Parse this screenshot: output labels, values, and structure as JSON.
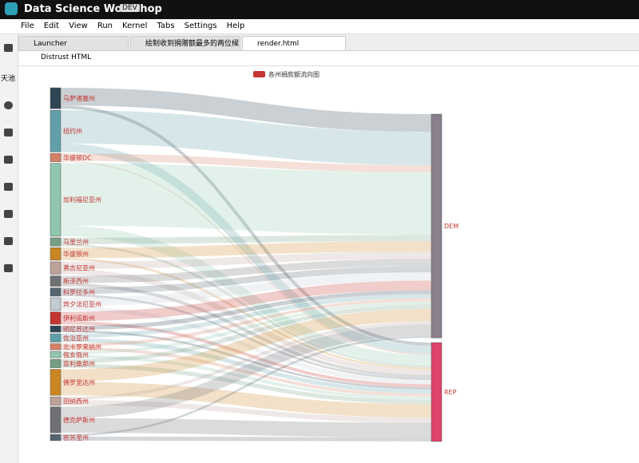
{
  "header": {
    "app_title": "Data Science Workshop",
    "badge": "DEV"
  },
  "menu": [
    "File",
    "Edit",
    "View",
    "Run",
    "Kernel",
    "Tabs",
    "Settings",
    "Help"
  ],
  "sidebar_label": "天池",
  "tabs": [
    "Launcher",
    "绘制收到捐赠额最多的两位候",
    "render.html"
  ],
  "toolbar": {
    "button": "Distrust HTML"
  },
  "chart_data": {
    "type": "sankey",
    "legend": "各州捐款额流向图",
    "legend_color": "#c23531",
    "colors": [
      "#2f4554",
      "#61a0a8",
      "#d48265",
      "#91c7ae",
      "#749f83",
      "#ca8622",
      "#bda29a",
      "#6e7074",
      "#546570",
      "#c4ccd3",
      "#c23531"
    ],
    "nodes": [
      "马萨诸塞州",
      "纽约州",
      "华盛顿DC",
      "加利福尼亚州",
      "马里兰州",
      "华盛顿州",
      "弗吉尼亚州",
      "新泽西州",
      "科罗拉多州",
      "宾夕法尼亚州",
      "伊利诺斯州",
      "明尼苏达州",
      "佐治亚州",
      "北卡罗来纳州",
      "俄亥俄州",
      "亚利桑那州",
      "佛罗里达州",
      "田纳西州",
      "德克萨斯州",
      "密苏里州",
      "DEM",
      "REP"
    ],
    "links": [
      {
        "source": "马萨诸塞州",
        "target": "DEM",
        "value": 17
      },
      {
        "source": "马萨诸塞州",
        "target": "REP",
        "value": 3
      },
      {
        "source": "纽约州",
        "target": "DEM",
        "value": 32
      },
      {
        "source": "纽约州",
        "target": "REP",
        "value": 8
      },
      {
        "source": "华盛顿DC",
        "target": "DEM",
        "value": 7
      },
      {
        "source": "华盛顿DC",
        "target": "REP",
        "value": 1
      },
      {
        "source": "加利福尼亚州",
        "target": "DEM",
        "value": 60
      },
      {
        "source": "加利福尼亚州",
        "target": "REP",
        "value": 10
      },
      {
        "source": "马里兰州",
        "target": "DEM",
        "value": 6
      },
      {
        "source": "马里兰州",
        "target": "REP",
        "value": 2
      },
      {
        "source": "华盛顿州",
        "target": "DEM",
        "value": 10
      },
      {
        "source": "华盛顿州",
        "target": "REP",
        "value": 2
      },
      {
        "source": "弗吉尼亚州",
        "target": "DEM",
        "value": 7
      },
      {
        "source": "弗吉尼亚州",
        "target": "REP",
        "value": 5
      },
      {
        "source": "新泽西州",
        "target": "DEM",
        "value": 7
      },
      {
        "source": "新泽西州",
        "target": "REP",
        "value": 3
      },
      {
        "source": "科罗拉多州",
        "target": "DEM",
        "value": 6
      },
      {
        "source": "科罗拉多州",
        "target": "REP",
        "value": 2
      },
      {
        "source": "宾夕法尼亚州",
        "target": "DEM",
        "value": 8
      },
      {
        "source": "宾夕法尼亚州",
        "target": "REP",
        "value": 4
      },
      {
        "source": "伊利诺斯州",
        "target": "DEM",
        "value": 9
      },
      {
        "source": "伊利诺斯州",
        "target": "REP",
        "value": 3
      },
      {
        "source": "明尼苏达州",
        "target": "DEM",
        "value": 4
      },
      {
        "source": "明尼苏达州",
        "target": "REP",
        "value": 2
      },
      {
        "source": "佐治亚州",
        "target": "DEM",
        "value": 4
      },
      {
        "source": "佐治亚州",
        "target": "REP",
        "value": 4
      },
      {
        "source": "北卡罗来纳州",
        "target": "DEM",
        "value": 3
      },
      {
        "source": "北卡罗来纳州",
        "target": "REP",
        "value": 3
      },
      {
        "source": "俄亥俄州",
        "target": "DEM",
        "value": 3
      },
      {
        "source": "俄亥俄州",
        "target": "REP",
        "value": 3
      },
      {
        "source": "亚利桑那州",
        "target": "DEM",
        "value": 4
      },
      {
        "source": "亚利桑那州",
        "target": "REP",
        "value": 4
      },
      {
        "source": "佛罗里达州",
        "target": "DEM",
        "value": 12
      },
      {
        "source": "佛罗里达州",
        "target": "REP",
        "value": 13
      },
      {
        "source": "田纳西州",
        "target": "DEM",
        "value": 3
      },
      {
        "source": "田纳西州",
        "target": "REP",
        "value": 5
      },
      {
        "source": "德克萨斯州",
        "target": "DEM",
        "value": 11
      },
      {
        "source": "德克萨斯州",
        "target": "REP",
        "value": 14
      },
      {
        "source": "密苏里州",
        "target": "DEM",
        "value": 2
      },
      {
        "source": "密苏里州",
        "target": "REP",
        "value": 4
      }
    ]
  }
}
